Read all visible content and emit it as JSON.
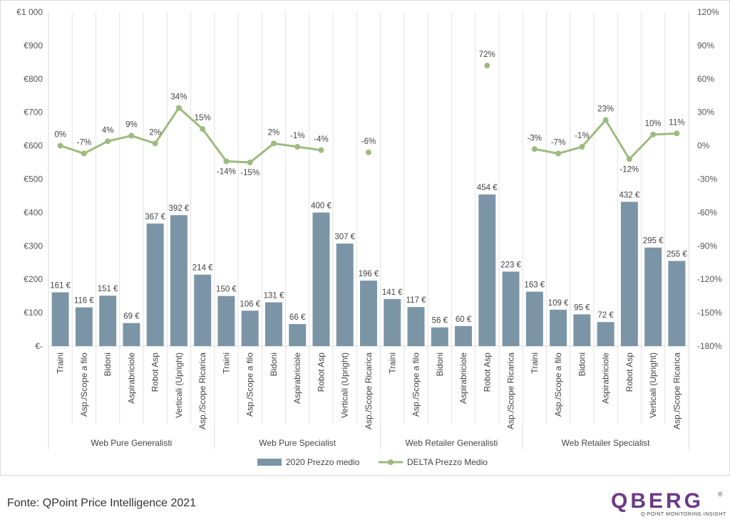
{
  "chart_data": {
    "type": "bar",
    "groups": [
      {
        "name": "Web Pure Generalisti",
        "categories": [
          "Traini",
          "Asp./Scope a filo",
          "Bidoni",
          "Aspirabriciole",
          "Robot Asp",
          "Verticali (Upright)",
          "Asp./Scope Ricarica"
        ]
      },
      {
        "name": "Web Pure Specialist",
        "categories": [
          "Traini",
          "Asp./Scope a filo",
          "Bidoni",
          "Aspirabriciole",
          "Robot Asp",
          "Verticali (Upright)",
          "Asp./Scope Ricarica"
        ]
      },
      {
        "name": "Web Retailer Generalisti",
        "categories": [
          "Traini",
          "Asp./Scope a filo",
          "Bidoni",
          "Aspirabriciole",
          "Robot Asp",
          "Asp./Scope Ricarica"
        ]
      },
      {
        "name": "Web Retailer Specialist",
        "categories": [
          "Traini",
          "Asp./Scope a filo",
          "Bidoni",
          "Aspirabriciole",
          "Robot Asp",
          "Verticali (Upright)",
          "Asp./Scope Ricarica"
        ]
      }
    ],
    "series": [
      {
        "name": "2020 Prezzo medio",
        "type": "bar",
        "axis": "left",
        "color": "#7b95a7",
        "values": [
          161,
          116,
          151,
          69,
          367,
          392,
          214,
          150,
          106,
          131,
          66,
          400,
          307,
          196,
          141,
          117,
          56,
          60,
          454,
          223,
          163,
          109,
          95,
          72,
          432,
          295,
          255
        ],
        "labels": [
          "161 €",
          "116 €",
          "151 €",
          "69 €",
          "367 €",
          "392 €",
          "214 €",
          "150 €",
          "106 €",
          "131 €",
          "66 €",
          "400 €",
          "307 €",
          "196 €",
          "141 €",
          "117 €",
          "56 €",
          "60 €",
          "454 €",
          "223 €",
          "163 €",
          "109 €",
          "95 €",
          "72 €",
          "432 €",
          "295 €",
          "255 €"
        ]
      },
      {
        "name": "DELTA Prezzo Medio",
        "type": "line",
        "axis": "right",
        "color": "#9dbb7f",
        "values": [
          0,
          -7,
          4,
          9,
          2,
          34,
          15,
          -14,
          -15,
          2,
          -1,
          -4,
          null,
          -6,
          null,
          null,
          null,
          null,
          72,
          null,
          -3,
          -7,
          -1,
          23,
          -12,
          10,
          11
        ],
        "labels": [
          "0%",
          "-7%",
          "4%",
          "9%",
          "2%",
          "34%",
          "15%",
          "-14%",
          "-15%",
          "2%",
          "-1%",
          "-4%",
          null,
          "-6%",
          null,
          null,
          null,
          null,
          "72%",
          null,
          "-3%",
          "-7%",
          "-1%",
          "23%",
          "-12%",
          "10%",
          "11%"
        ]
      }
    ],
    "y_left": {
      "min": 0,
      "max": 1000,
      "ticks": [
        "€-",
        "€100",
        "€200",
        "€300",
        "€400",
        "€500",
        "€600",
        "€700",
        "€800",
        "€900",
        "€1 000"
      ]
    },
    "y_right": {
      "min": -180,
      "max": 120,
      "ticks": [
        "-180%",
        "-150%",
        "-120%",
        "-90%",
        "-60%",
        "-30%",
        "0%",
        "30%",
        "60%",
        "90%",
        "120%"
      ]
    },
    "grid": "vertical",
    "legend_position": "bottom"
  },
  "footer": {
    "source": "Fonte: QPoint Price Intelligence 2021",
    "logo_text": "QBERG",
    "logo_registered": "®",
    "logo_tagline": "Q-POINT MONITORING INSIGHT",
    "logo_color": "#6b3a88"
  }
}
